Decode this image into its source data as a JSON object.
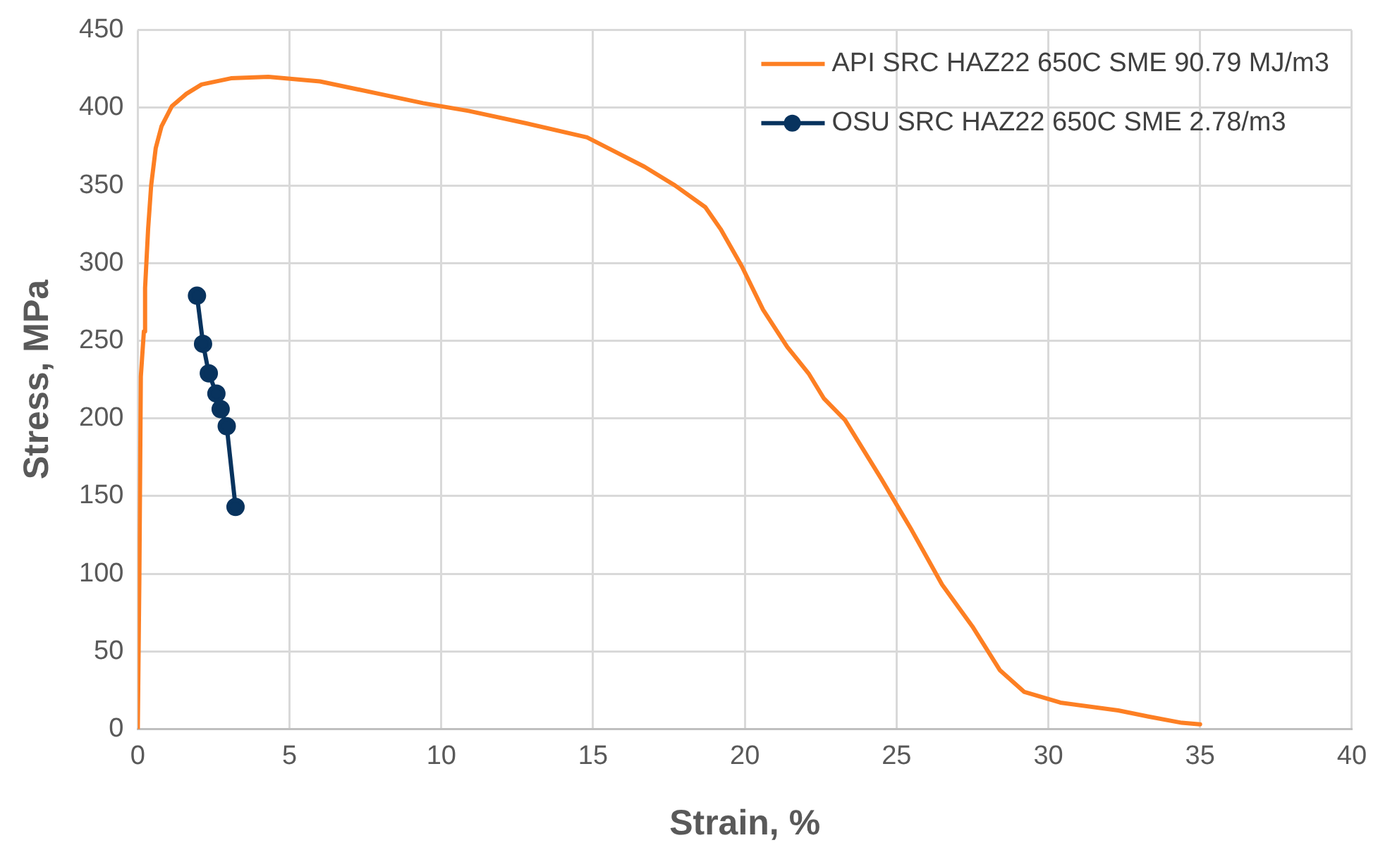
{
  "chart_data": {
    "type": "line",
    "xlabel": "Strain, %",
    "ylabel": "Stress, MPa",
    "xlim": [
      0,
      40
    ],
    "xticks": [
      0,
      5,
      10,
      15,
      20,
      25,
      30,
      35,
      40
    ],
    "ylim": [
      0,
      450
    ],
    "yticks": [
      0,
      50,
      100,
      150,
      200,
      250,
      300,
      350,
      400,
      450
    ],
    "grid": true,
    "legend": "top right",
    "line_style": "solid",
    "series": [
      {
        "name": "API SRC HAZ22 650C SME 90.79 MJ/m3",
        "color": "#fd7f23",
        "marker": "none",
        "x": [
          0,
          0.05,
          0.1,
          0.2,
          0.24,
          0.34,
          0.44,
          0.59,
          0.78,
          1.12,
          1.6,
          2.1,
          3.07,
          4.3,
          6.0,
          7.95,
          9.4,
          10.9,
          12.8,
          14.8,
          15.8,
          16.7,
          17.7,
          18.7,
          19.2,
          19.9,
          20.6,
          21.4,
          22.1,
          22.6,
          23.3,
          24.5,
          25.5,
          26.5,
          27.5,
          28.4,
          29.2,
          30.4,
          32.3,
          33.3,
          34.4,
          35
        ],
        "values": [
          0,
          95,
          227,
          256,
          284,
          322,
          350,
          374,
          388,
          401,
          409,
          415,
          419,
          420,
          417,
          409,
          403,
          398,
          390,
          381,
          371,
          362,
          350,
          336,
          322,
          298,
          270,
          246,
          229,
          213,
          199,
          161,
          128,
          93,
          66,
          38,
          24,
          17,
          12,
          8,
          4,
          3
        ]
      },
      {
        "name": "OSU SRC HAZ22 650C SME 2.78/m3",
        "color": "#08335e",
        "marker": "circle",
        "x": [
          1.95,
          2.15,
          2.34,
          2.59,
          2.73,
          2.93,
          3.22
        ],
        "values": [
          279,
          248,
          229,
          216,
          206,
          195,
          143
        ]
      }
    ]
  }
}
